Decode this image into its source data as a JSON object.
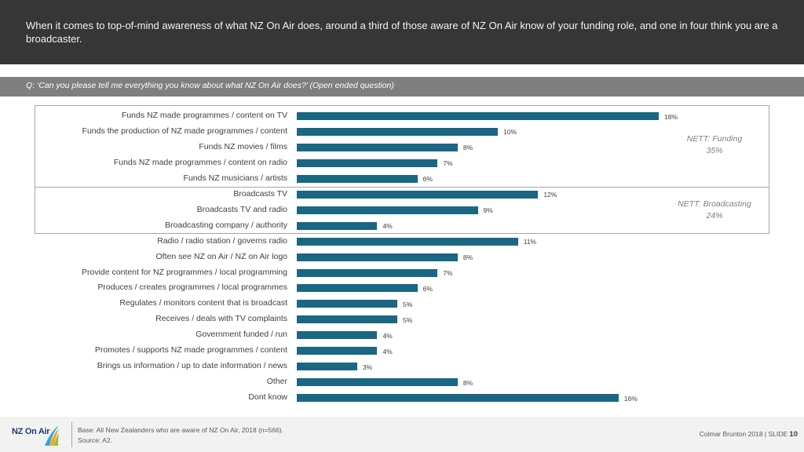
{
  "header": {
    "title": "When it comes to top-of-mind awareness of what NZ On Air does, around a third of those aware of NZ On Air know of your funding role, and one in four think you are a broadcaster."
  },
  "question": "Q: ‘Can you please tell me everything you know about what NZ On Air does?’ (Open ended question)",
  "nett": {
    "funding": {
      "name": "NETT: Funding",
      "value": "35%"
    },
    "broadcasting": {
      "name": "NETT: Broadcasting",
      "value": "24%"
    }
  },
  "chart_data": {
    "type": "bar",
    "orientation": "horizontal",
    "categories": [
      "Funds NZ made programmes / content on TV",
      "Funds the production of NZ made programmes / content",
      "Funds NZ movies / films",
      "Funds NZ made programmes / content on radio",
      "Funds NZ musicians / artists",
      "Broadcasts TV",
      "Broadcasts TV and radio",
      "Broadcasting company / authority",
      "Radio / radio station / governs radio",
      "Often see NZ on Air / NZ on Air logo",
      "Provide content for NZ programmes / local programming",
      "Produces / creates programmes / local programmes",
      "Regulates / monitors content that is broadcast",
      "Receives / deals with TV complaints",
      "Government funded / run",
      "Promotes / supports NZ made programmes / content",
      "Brings us information / up to date information / news",
      "Other",
      "Dont know"
    ],
    "values": [
      18,
      10,
      8,
      7,
      6,
      12,
      9,
      4,
      11,
      8,
      7,
      6,
      5,
      5,
      4,
      4,
      3,
      8,
      16
    ],
    "value_labels": [
      "18%",
      "10%",
      "8%",
      "7%",
      "6%",
      "12%",
      "9%",
      "4%",
      "11%",
      "8%",
      "7%",
      "6%",
      "5%",
      "5%",
      "4%",
      "4%",
      "3%",
      "8%",
      "16%"
    ],
    "unit": "%",
    "xlim": [
      0,
      18
    ],
    "color": "#1a6683",
    "grid": false,
    "legend": "none"
  },
  "footer": {
    "logo_text": "NZ On Air",
    "base": "Base: All New Zealanders who are aware of NZ On Air, 2018 (n=566).",
    "source": "Source: A2.",
    "credit": "Colmar Brunton 2018 | SLIDE",
    "slide_number": "10"
  }
}
